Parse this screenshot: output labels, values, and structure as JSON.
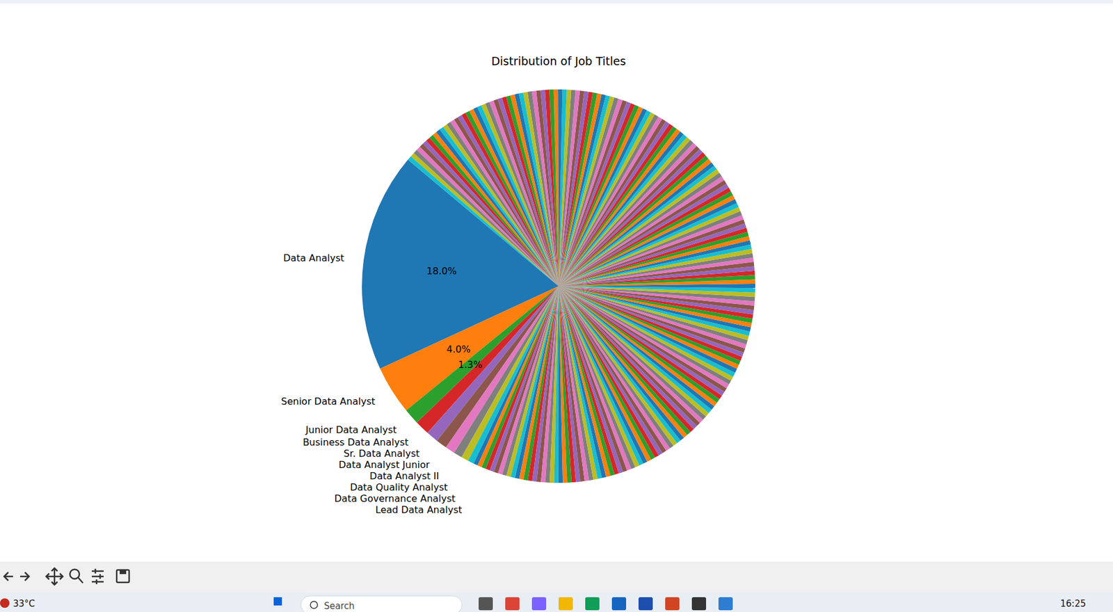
{
  "chart_data": {
    "type": "pie",
    "title": "Distribution of Job Titles",
    "categories": [
      "Data Analyst",
      "Senior Data Analyst",
      "Junior Data Analyst",
      "Business Data Analyst",
      "Sr. Data Analyst",
      "Data Analyst Junior",
      "Data Analyst II",
      "Data Quality Analyst",
      "Data Governance Analyst",
      "Lead Data Analyst",
      null,
      null,
      null,
      null,
      null,
      null,
      null,
      null,
      null,
      null,
      null,
      null,
      null,
      null,
      null,
      null,
      null,
      null,
      null,
      null,
      null,
      null,
      null,
      null,
      null,
      null,
      null,
      null,
      null,
      null,
      null,
      null,
      null,
      null,
      null,
      null,
      null,
      null,
      null,
      null,
      null,
      null,
      null,
      null,
      null,
      null,
      null,
      null,
      null,
      null,
      null,
      null,
      null,
      null,
      null,
      null,
      null,
      null,
      null,
      null,
      null,
      null,
      null,
      null,
      null,
      null,
      null,
      null,
      null,
      null,
      null,
      null,
      null,
      null,
      null,
      null,
      null,
      null,
      null,
      null,
      null,
      null,
      null,
      null,
      null,
      null,
      null,
      null,
      null,
      null,
      null,
      null,
      null,
      null,
      null,
      null,
      null,
      null,
      null,
      null,
      null,
      null,
      null,
      null,
      null,
      null,
      null,
      null,
      null,
      null,
      null,
      null,
      null,
      null,
      null,
      null,
      null,
      null,
      null,
      null,
      null,
      null,
      null,
      null,
      null,
      null,
      null,
      null,
      null,
      null,
      null,
      null,
      null,
      null,
      null,
      null,
      null,
      null,
      null,
      null,
      null,
      null,
      null,
      null,
      null,
      null,
      null,
      null,
      null,
      null,
      null,
      null,
      null,
      null,
      null,
      null,
      null,
      null,
      null,
      null,
      null,
      null,
      null,
      null,
      null,
      null,
      null,
      null,
      null,
      null,
      null,
      null,
      null,
      null,
      null,
      null,
      null,
      null,
      null,
      null,
      null,
      null,
      null,
      null,
      null,
      null,
      null,
      null,
      null,
      null,
      null,
      null,
      null,
      null,
      null,
      null,
      null,
      null,
      null,
      null
    ],
    "values": [
      18.0,
      4.0,
      1.3,
      1.2,
      1.0,
      0.9,
      0.8,
      0.7,
      0.6,
      0.5,
      0.355,
      0.355,
      0.355,
      0.355,
      0.355,
      0.355,
      0.355,
      0.355,
      0.355,
      0.355,
      0.355,
      0.355,
      0.355,
      0.355,
      0.355,
      0.355,
      0.355,
      0.355,
      0.355,
      0.355,
      0.355,
      0.355,
      0.355,
      0.355,
      0.355,
      0.355,
      0.355,
      0.355,
      0.355,
      0.355,
      0.355,
      0.355,
      0.355,
      0.355,
      0.355,
      0.355,
      0.355,
      0.355,
      0.355,
      0.355,
      0.355,
      0.355,
      0.355,
      0.355,
      0.355,
      0.355,
      0.355,
      0.355,
      0.355,
      0.355,
      0.355,
      0.355,
      0.355,
      0.355,
      0.355,
      0.355,
      0.355,
      0.355,
      0.355,
      0.355,
      0.355,
      0.355,
      0.355,
      0.355,
      0.355,
      0.355,
      0.355,
      0.355,
      0.355,
      0.355,
      0.355,
      0.355,
      0.355,
      0.355,
      0.355,
      0.355,
      0.355,
      0.355,
      0.355,
      0.355,
      0.355,
      0.355,
      0.355,
      0.355,
      0.355,
      0.355,
      0.355,
      0.355,
      0.355,
      0.355,
      0.355,
      0.355,
      0.355,
      0.355,
      0.355,
      0.355,
      0.355,
      0.355,
      0.355,
      0.355,
      0.355,
      0.355,
      0.355,
      0.355,
      0.355,
      0.355,
      0.355,
      0.355,
      0.355,
      0.355,
      0.355,
      0.355,
      0.355,
      0.355,
      0.355,
      0.355,
      0.355,
      0.355,
      0.355,
      0.355,
      0.355,
      0.355,
      0.355,
      0.355,
      0.355,
      0.355,
      0.355,
      0.355,
      0.355,
      0.355,
      0.355,
      0.355,
      0.355,
      0.355,
      0.355,
      0.355,
      0.355,
      0.355,
      0.355,
      0.355,
      0.355,
      0.355,
      0.355,
      0.355,
      0.355,
      0.355,
      0.355,
      0.355,
      0.355,
      0.355,
      0.355,
      0.355,
      0.355,
      0.355,
      0.355,
      0.355,
      0.355,
      0.355,
      0.355,
      0.355,
      0.355,
      0.355,
      0.355,
      0.355,
      0.355,
      0.355,
      0.355,
      0.355,
      0.355,
      0.355,
      0.355,
      0.355,
      0.355,
      0.355,
      0.355,
      0.355,
      0.355,
      0.355,
      0.355,
      0.355,
      0.355,
      0.355,
      0.355,
      0.355,
      0.355,
      0.355,
      0.355,
      0.355,
      0.355,
      0.355,
      0.355,
      0.355,
      0.355,
      0.355,
      0.355,
      0.355,
      0.355,
      0.355,
      0.355,
      0.355
    ],
    "value_labels": [
      "18.0%",
      "4.0%",
      "1.3%",
      null,
      null,
      null,
      null,
      null,
      null,
      null,
      null,
      null,
      null,
      null,
      null,
      null,
      null,
      null,
      null,
      null,
      null,
      null,
      null,
      null,
      null,
      null,
      null,
      null,
      null,
      null,
      null,
      null,
      null,
      null,
      null,
      null,
      null,
      null,
      null,
      null,
      null,
      null,
      null,
      null,
      null,
      null,
      null,
      null,
      null,
      null,
      null,
      null,
      null,
      null,
      null,
      null,
      null,
      null,
      null,
      null,
      null,
      null,
      null,
      null,
      null,
      null,
      null,
      null,
      null,
      null,
      null,
      null,
      null,
      null,
      null,
      null,
      null,
      null,
      null,
      null,
      null,
      null,
      null,
      null,
      null,
      null,
      null,
      null,
      null,
      null,
      null,
      null,
      null,
      null,
      null,
      null,
      null,
      null,
      null,
      null,
      null,
      null,
      null,
      null,
      null,
      null,
      null,
      null,
      null,
      null,
      null,
      null,
      null,
      null,
      null,
      null,
      null,
      null,
      null,
      null,
      null,
      null,
      null,
      null,
      null,
      null,
      null,
      null,
      null,
      null,
      null,
      null,
      null,
      null,
      null,
      null,
      null,
      null,
      null,
      null,
      null,
      null,
      null,
      null,
      null,
      null,
      null,
      null,
      null,
      null,
      null,
      null,
      null,
      null,
      null,
      null,
      null,
      null,
      null,
      null,
      null,
      null,
      null,
      null,
      null,
      null,
      null,
      null,
      null,
      null,
      null,
      null,
      null,
      null,
      null,
      null,
      null,
      null,
      null,
      null,
      null,
      null,
      null,
      null,
      null,
      null,
      null,
      null,
      null,
      null,
      null,
      null,
      null,
      null,
      null,
      null,
      null,
      null,
      null,
      null,
      null,
      null,
      null,
      null,
      null,
      null,
      null,
      null,
      null,
      null
    ],
    "data_labels": true
  },
  "screen": {
    "weather": "33°C",
    "search": "Search",
    "clock": "16:25"
  }
}
